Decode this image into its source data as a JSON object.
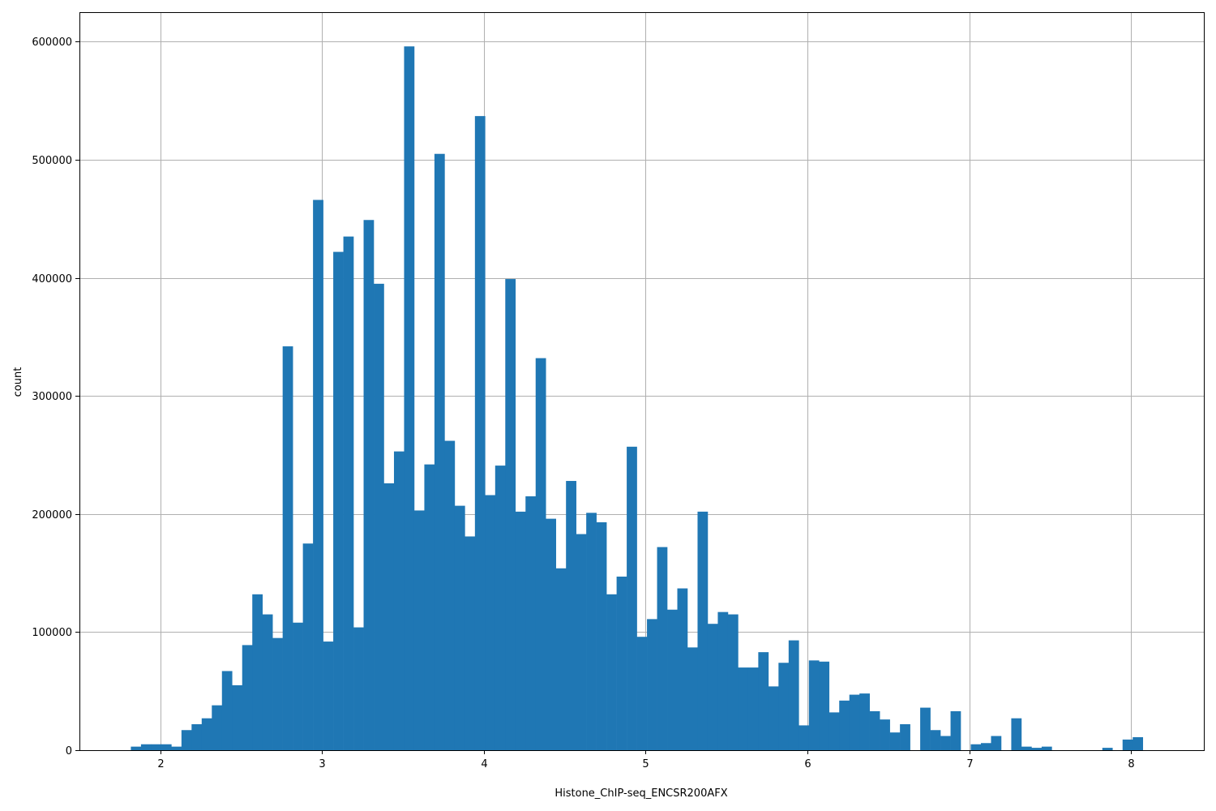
{
  "chart_data": {
    "type": "bar",
    "title": "",
    "xlabel": "Histone_ChIP-seq_ENCSR200AFX",
    "ylabel": "count",
    "xlim": [
      1.5,
      8.45
    ],
    "ylim": [
      0,
      625000
    ],
    "grid": true,
    "bar_color": "#1f77b4",
    "bin_start": 1.8178,
    "bin_width": 0.06255,
    "xticks": [
      2,
      3,
      4,
      5,
      6,
      7,
      8
    ],
    "yticks": [
      0,
      100000,
      200000,
      300000,
      400000,
      500000,
      600000
    ],
    "values": [
      3000,
      5000,
      5000,
      5000,
      3000,
      17000,
      22000,
      27000,
      38000,
      67000,
      55000,
      89000,
      132000,
      115000,
      95000,
      342000,
      108000,
      175000,
      466000,
      92000,
      422000,
      435000,
      104000,
      449000,
      395000,
      226000,
      253000,
      596000,
      203000,
      242000,
      505000,
      262000,
      207000,
      181000,
      537000,
      216000,
      241000,
      399000,
      202000,
      215000,
      332000,
      196000,
      154000,
      228000,
      183000,
      201000,
      193000,
      132000,
      147000,
      257000,
      96000,
      111000,
      172000,
      119000,
      137000,
      87000,
      202000,
      107000,
      117000,
      115000,
      70000,
      70000,
      83000,
      54000,
      74000,
      93000,
      21000,
      76000,
      75000,
      32000,
      42000,
      47000,
      48000,
      33000,
      26000,
      15000,
      22000,
      0,
      36000,
      17000,
      12000,
      33000,
      0,
      5000,
      6000,
      12000,
      0,
      27000,
      3000,
      2000,
      3000,
      0,
      0,
      0,
      0,
      0,
      2000,
      0,
      9000,
      11000
    ]
  }
}
